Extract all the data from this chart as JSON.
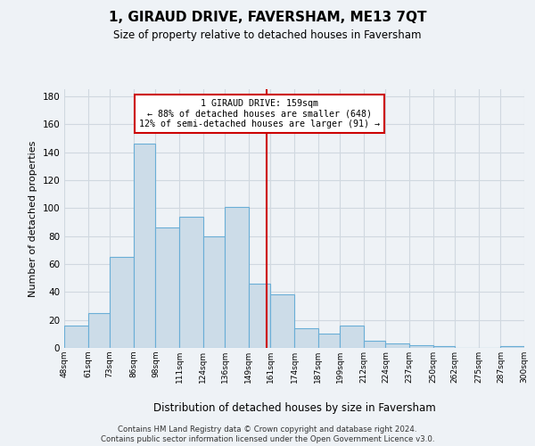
{
  "title": "1, GIRAUD DRIVE, FAVERSHAM, ME13 7QT",
  "subtitle": "Size of property relative to detached houses in Faversham",
  "xlabel": "Distribution of detached houses by size in Faversham",
  "ylabel": "Number of detached properties",
  "bin_labels": [
    "48sqm",
    "61sqm",
    "73sqm",
    "86sqm",
    "98sqm",
    "111sqm",
    "124sqm",
    "136sqm",
    "149sqm",
    "161sqm",
    "174sqm",
    "187sqm",
    "199sqm",
    "212sqm",
    "224sqm",
    "237sqm",
    "250sqm",
    "262sqm",
    "275sqm",
    "287sqm",
    "300sqm"
  ],
  "bin_edges": [
    48,
    61,
    73,
    86,
    98,
    111,
    124,
    136,
    149,
    161,
    174,
    187,
    199,
    212,
    224,
    237,
    250,
    262,
    275,
    287,
    300
  ],
  "bar_heights": [
    16,
    25,
    65,
    146,
    86,
    94,
    80,
    101,
    46,
    38,
    14,
    10,
    16,
    5,
    3,
    2,
    1,
    0,
    0,
    1
  ],
  "bar_color": "#ccdce8",
  "bar_edge_color": "#6aaed6",
  "property_size": 159,
  "vline_color": "#cc0000",
  "annotation_text_line1": "1 GIRAUD DRIVE: 159sqm",
  "annotation_text_line2": "← 88% of detached houses are smaller (648)",
  "annotation_text_line3": "12% of semi-detached houses are larger (91) →",
  "annotation_box_edgecolor": "#cc0000",
  "ylim": [
    0,
    185
  ],
  "yticks": [
    0,
    20,
    40,
    60,
    80,
    100,
    120,
    140,
    160,
    180
  ],
  "grid_color": "#d0d8e0",
  "background_color": "#eef2f6",
  "footer_line1": "Contains HM Land Registry data © Crown copyright and database right 2024.",
  "footer_line2": "Contains public sector information licensed under the Open Government Licence v3.0."
}
